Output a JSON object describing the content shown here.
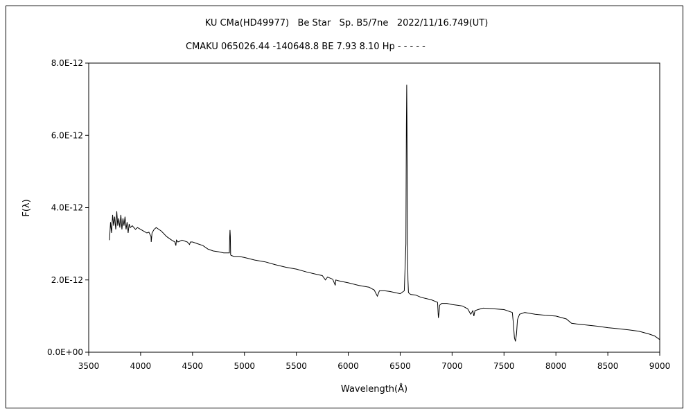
{
  "chart_data": {
    "type": "line",
    "title": "KU CMa(HD49977)   Be Star   Sp. B5/7ne   2022/11/16.749(UT)",
    "subtitle": "CMAKU 065026.44 -140648.8 BE 7.93 8.10 Hp - - - - -",
    "xlabel": "Wavelength(Å)",
    "ylabel": "F(λ)",
    "xlim": [
      3500,
      9000
    ],
    "ylim": [
      0,
      8e-12
    ],
    "x_ticks": [
      "3500",
      "4000",
      "4500",
      "5000",
      "5500",
      "6000",
      "6500",
      "7000",
      "7500",
      "8000",
      "8500",
      "9000"
    ],
    "y_ticks": [
      "0.0E+00",
      "2.0E-12",
      "4.0E-12",
      "6.0E-12",
      "8.0E-12"
    ],
    "grid": false,
    "legend": "none",
    "series": [
      {
        "x": [
          3700,
          3710,
          3720,
          3730,
          3740,
          3750,
          3760,
          3770,
          3780,
          3790,
          3800,
          3810,
          3820,
          3830,
          3840,
          3850,
          3860,
          3870,
          3880,
          3890,
          3900,
          3920,
          3950,
          3970,
          4000,
          4030,
          4060,
          4080,
          4100,
          4102,
          4110,
          4130,
          4150,
          4200,
          4250,
          4300,
          4330,
          4340,
          4345,
          4360,
          4400,
          4450,
          4471,
          4480,
          4500,
          4550,
          4600,
          4650,
          4700,
          4750,
          4800,
          4855,
          4858,
          4861,
          4864,
          4867,
          4870,
          4900,
          4950,
          5000,
          5100,
          5200,
          5300,
          5400,
          5500,
          5600,
          5700,
          5750,
          5780,
          5800,
          5850,
          5875,
          5880,
          5900,
          5950,
          6000,
          6100,
          6200,
          6250,
          6280,
          6300,
          6350,
          6400,
          6450,
          6500,
          6540,
          6555,
          6560,
          6563,
          6566,
          6570,
          6575,
          6580,
          6600,
          6650,
          6700,
          6800,
          6860,
          6868,
          6875,
          6880,
          6900,
          6950,
          7000,
          7050,
          7100,
          7150,
          7180,
          7200,
          7210,
          7220,
          7250,
          7300,
          7400,
          7500,
          7580,
          7590,
          7600,
          7610,
          7620,
          7630,
          7650,
          7700,
          7800,
          7900,
          8000,
          8100,
          8150,
          8200,
          8300,
          8400,
          8500,
          8600,
          8700,
          8800,
          8900,
          8950,
          9000
        ],
        "y": [
          3.1e-12,
          3.6e-12,
          3.3e-12,
          3.8e-12,
          3.5e-12,
          3.75e-12,
          3.4e-12,
          3.9e-12,
          3.5e-12,
          3.7e-12,
          3.45e-12,
          3.8e-12,
          3.4e-12,
          3.7e-12,
          3.5e-12,
          3.75e-12,
          3.4e-12,
          3.6e-12,
          3.3e-12,
          3.55e-12,
          3.45e-12,
          3.5e-12,
          3.4e-12,
          3.45e-12,
          3.4e-12,
          3.35e-12,
          3.3e-12,
          3.32e-12,
          3.2e-12,
          3.05e-12,
          3.3e-12,
          3.4e-12,
          3.45e-12,
          3.35e-12,
          3.2e-12,
          3.1e-12,
          3.05e-12,
          2.95e-12,
          3.1e-12,
          3.05e-12,
          3.1e-12,
          3.05e-12,
          2.98e-12,
          3.05e-12,
          3.05e-12,
          3e-12,
          2.95e-12,
          2.85e-12,
          2.8e-12,
          2.78e-12,
          2.75e-12,
          2.75e-12,
          3.2e-12,
          3.38e-12,
          3.2e-12,
          2.7e-12,
          2.68e-12,
          2.65e-12,
          2.65e-12,
          2.62e-12,
          2.55e-12,
          2.5e-12,
          2.42e-12,
          2.35e-12,
          2.3e-12,
          2.22e-12,
          2.15e-12,
          2.12e-12,
          2e-12,
          2.08e-12,
          2.02e-12,
          1.85e-12,
          2e-12,
          1.98e-12,
          1.95e-12,
          1.92e-12,
          1.85e-12,
          1.8e-12,
          1.72e-12,
          1.55e-12,
          1.7e-12,
          1.7e-12,
          1.68e-12,
          1.65e-12,
          1.62e-12,
          1.7e-12,
          3e-12,
          6.3e-12,
          7.4e-12,
          6.2e-12,
          3e-12,
          2e-12,
          1.65e-12,
          1.6e-12,
          1.58e-12,
          1.52e-12,
          1.45e-12,
          1.38e-12,
          9.5e-13,
          1.1e-12,
          1.3e-12,
          1.35e-12,
          1.35e-12,
          1.32e-12,
          1.3e-12,
          1.28e-12,
          1.2e-12,
          1.05e-12,
          1.15e-12,
          1e-12,
          1.15e-12,
          1.18e-12,
          1.22e-12,
          1.2e-12,
          1.18e-12,
          1.1e-12,
          8e-13,
          4e-13,
          3e-13,
          5e-13,
          9e-13,
          1.05e-12,
          1.1e-12,
          1.05e-12,
          1.02e-12,
          1e-12,
          9.2e-13,
          8e-13,
          7.8e-13,
          7.5e-13,
          7.2e-13,
          6.8e-13,
          6.5e-13,
          6.2e-13,
          5.8e-13,
          5e-13,
          4.5e-13,
          3.5e-13
        ]
      }
    ]
  }
}
